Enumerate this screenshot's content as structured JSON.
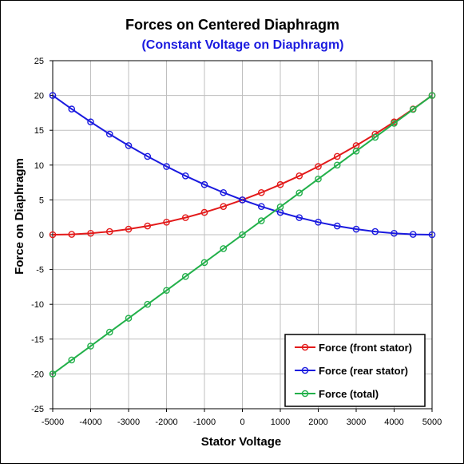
{
  "chart_data": {
    "type": "line",
    "title": "Forces on Centered Diaphragm",
    "subtitle": "(Constant Voltage on Diaphragm)",
    "xlabel": "Stator Voltage",
    "ylabel": "Force on Diaphragm",
    "xlim": [
      -5000,
      5000
    ],
    "ylim": [
      -25,
      25
    ],
    "x_ticks": [
      -5000,
      -4000,
      -3000,
      -2000,
      -1000,
      0,
      1000,
      2000,
      3000,
      4000,
      5000
    ],
    "y_ticks": [
      -25,
      -20,
      -15,
      -10,
      -5,
      0,
      5,
      10,
      15,
      20,
      25
    ],
    "grid": true,
    "legend_position": "bottom-right",
    "x": [
      -5000,
      -4500,
      -4000,
      -3500,
      -3000,
      -2500,
      -2000,
      -1500,
      -1000,
      -500,
      0,
      500,
      1000,
      1500,
      2000,
      2500,
      3000,
      3500,
      4000,
      4500,
      5000
    ],
    "series": [
      {
        "name": "Force (front stator)",
        "color": "#e31a1a",
        "values": [
          0,
          0.05,
          0.2,
          0.45,
          0.8,
          1.25,
          1.8,
          2.45,
          3.2,
          4.05,
          5,
          6.05,
          7.2,
          8.45,
          9.8,
          11.25,
          12.8,
          14.45,
          16.2,
          18.05,
          20
        ]
      },
      {
        "name": "Force (rear stator)",
        "color": "#1a1adf",
        "values": [
          20,
          18.05,
          16.2,
          14.45,
          12.8,
          11.25,
          9.8,
          8.45,
          7.2,
          6.05,
          5,
          4.05,
          3.2,
          2.45,
          1.8,
          1.25,
          0.8,
          0.45,
          0.2,
          0.05,
          0
        ]
      },
      {
        "name": "Force (total)",
        "color": "#22b04a",
        "values": [
          -20,
          -18,
          -16,
          -14,
          -12,
          -10,
          -8,
          -6,
          -4,
          -2,
          0,
          2,
          4,
          6,
          8,
          10,
          12,
          14,
          16,
          18,
          20
        ]
      }
    ]
  }
}
